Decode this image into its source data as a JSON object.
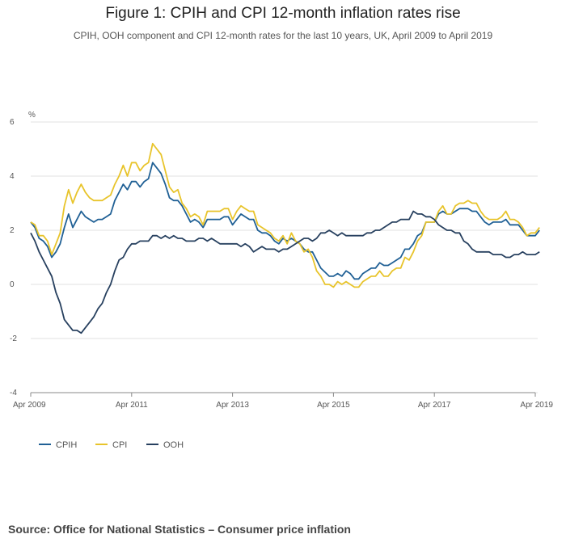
{
  "chart_data": {
    "type": "line",
    "title": "Figure 1: CPIH and CPI 12-month inflation rates rise",
    "subtitle": "CPIH, OOH component and CPI 12-month rates for the last 10 years, UK, April 2009 to April 2019",
    "ylabel": "%",
    "xlabel": "",
    "ylim": [
      -4,
      6
    ],
    "yticks": [
      6,
      4,
      2,
      0,
      -2,
      -4
    ],
    "xlim": [
      0,
      120
    ],
    "xticks": [
      {
        "pos": 0,
        "label": "Apr 2009"
      },
      {
        "pos": 24,
        "label": "Apr 2011"
      },
      {
        "pos": 48,
        "label": "Apr 2013"
      },
      {
        "pos": 72,
        "label": "Apr 2015"
      },
      {
        "pos": 96,
        "label": "Apr 2017"
      },
      {
        "pos": 120,
        "label": "Apr 2019"
      }
    ],
    "legend_position": "bottom-left",
    "grid": true,
    "series": [
      {
        "name": "CPIH",
        "color": "#206095",
        "values": [
          2.3,
          2.1,
          1.7,
          1.6,
          1.4,
          1.0,
          1.2,
          1.5,
          2.1,
          2.6,
          2.1,
          2.4,
          2.7,
          2.5,
          2.4,
          2.3,
          2.4,
          2.4,
          2.5,
          2.6,
          3.1,
          3.4,
          3.7,
          3.5,
          3.8,
          3.8,
          3.6,
          3.8,
          3.9,
          4.5,
          4.3,
          4.1,
          3.7,
          3.2,
          3.1,
          3.1,
          2.9,
          2.6,
          2.3,
          2.4,
          2.3,
          2.1,
          2.4,
          2.4,
          2.4,
          2.4,
          2.5,
          2.5,
          2.2,
          2.4,
          2.6,
          2.5,
          2.4,
          2.4,
          2.0,
          1.9,
          1.9,
          1.8,
          1.6,
          1.5,
          1.7,
          1.6,
          1.7,
          1.6,
          1.5,
          1.3,
          1.2,
          1.2,
          0.9,
          0.6,
          0.45,
          0.3,
          0.3,
          0.4,
          0.3,
          0.5,
          0.4,
          0.2,
          0.2,
          0.4,
          0.5,
          0.6,
          0.6,
          0.8,
          0.7,
          0.7,
          0.8,
          0.9,
          1.0,
          1.3,
          1.3,
          1.5,
          1.8,
          1.9,
          2.3,
          2.3,
          2.3,
          2.6,
          2.7,
          2.6,
          2.6,
          2.7,
          2.8,
          2.8,
          2.8,
          2.7,
          2.7,
          2.5,
          2.3,
          2.2,
          2.3,
          2.3,
          2.3,
          2.4,
          2.2,
          2.2,
          2.2,
          2.0,
          1.8,
          1.8,
          1.8,
          2.0
        ]
      },
      {
        "name": "CPI",
        "color": "#e8c42b",
        "values": [
          2.3,
          2.2,
          1.8,
          1.8,
          1.6,
          1.1,
          1.5,
          1.9,
          2.9,
          3.5,
          3.0,
          3.4,
          3.7,
          3.4,
          3.2,
          3.1,
          3.1,
          3.1,
          3.2,
          3.3,
          3.7,
          4.0,
          4.4,
          4.0,
          4.5,
          4.5,
          4.2,
          4.4,
          4.5,
          5.2,
          5.0,
          4.8,
          4.2,
          3.6,
          3.4,
          3.5,
          3.0,
          2.8,
          2.5,
          2.6,
          2.5,
          2.2,
          2.7,
          2.7,
          2.7,
          2.7,
          2.8,
          2.8,
          2.4,
          2.7,
          2.9,
          2.8,
          2.7,
          2.7,
          2.2,
          2.1,
          2.0,
          1.9,
          1.7,
          1.6,
          1.8,
          1.5,
          1.9,
          1.6,
          1.5,
          1.2,
          1.3,
          1.0,
          0.5,
          0.3,
          0.0,
          0.0,
          -0.1,
          0.1,
          0.0,
          0.1,
          0.0,
          -0.1,
          -0.1,
          0.1,
          0.2,
          0.3,
          0.3,
          0.5,
          0.3,
          0.3,
          0.5,
          0.6,
          0.6,
          1.0,
          0.9,
          1.2,
          1.6,
          1.8,
          2.3,
          2.3,
          2.3,
          2.7,
          2.9,
          2.6,
          2.6,
          2.9,
          3.0,
          3.0,
          3.1,
          3.0,
          3.0,
          2.7,
          2.5,
          2.4,
          2.4,
          2.4,
          2.5,
          2.7,
          2.4,
          2.4,
          2.3,
          2.1,
          1.8,
          1.9,
          1.9,
          2.1
        ]
      },
      {
        "name": "OOH",
        "color": "#27405f",
        "values": [
          1.9,
          1.6,
          1.2,
          0.9,
          0.6,
          0.3,
          -0.3,
          -0.7,
          -1.3,
          -1.5,
          -1.7,
          -1.7,
          -1.8,
          -1.6,
          -1.4,
          -1.2,
          -0.9,
          -0.7,
          -0.3,
          0.0,
          0.5,
          0.9,
          1.0,
          1.3,
          1.5,
          1.5,
          1.6,
          1.6,
          1.6,
          1.8,
          1.8,
          1.7,
          1.8,
          1.7,
          1.8,
          1.7,
          1.7,
          1.6,
          1.6,
          1.6,
          1.7,
          1.7,
          1.6,
          1.7,
          1.6,
          1.5,
          1.5,
          1.5,
          1.5,
          1.5,
          1.4,
          1.5,
          1.4,
          1.2,
          1.3,
          1.4,
          1.3,
          1.3,
          1.3,
          1.2,
          1.3,
          1.3,
          1.4,
          1.5,
          1.6,
          1.7,
          1.7,
          1.6,
          1.7,
          1.9,
          1.9,
          2.0,
          1.9,
          1.8,
          1.9,
          1.8,
          1.8,
          1.8,
          1.8,
          1.8,
          1.9,
          1.9,
          2.0,
          2.0,
          2.1,
          2.2,
          2.3,
          2.3,
          2.4,
          2.4,
          2.4,
          2.7,
          2.6,
          2.6,
          2.5,
          2.5,
          2.4,
          2.2,
          2.1,
          2.0,
          2.0,
          1.9,
          1.9,
          1.6,
          1.5,
          1.3,
          1.2,
          1.2,
          1.2,
          1.2,
          1.1,
          1.1,
          1.1,
          1.0,
          1.0,
          1.1,
          1.1,
          1.2,
          1.1,
          1.1,
          1.1,
          1.2
        ]
      }
    ]
  },
  "source": "Source: Office for National Statistics – Consumer price inflation"
}
